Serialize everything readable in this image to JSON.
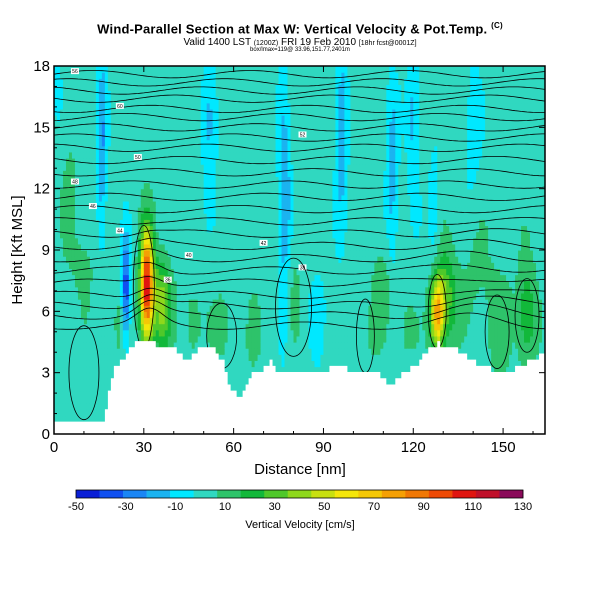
{
  "title": {
    "main": "Wind-Parallel Section at Max W: Vertical Velocity & Pot.Temp.",
    "copyright": "(C)",
    "valid": "Valid 1400 LST",
    "valid_utc": "(1200Z)",
    "valid_date": "FRI 19 Feb 2010",
    "forecast": "[18hr fcst@0001Z]",
    "subline": "box/lmax=119@ 33.96,151.77,2401m"
  },
  "chart_data": {
    "type": "heatmap",
    "title": "Wind-Parallel Section at Max W: Vertical Velocity & Pot.Temp.",
    "xlabel": "Distance [nm]",
    "ylabel": "Height [Kft MSL]",
    "xlim": [
      0,
      164
    ],
    "ylim": [
      0,
      18
    ],
    "xticks": [
      0,
      30,
      60,
      90,
      120,
      150
    ],
    "yticks": [
      0,
      3,
      6,
      9,
      12,
      15,
      18
    ],
    "colorbar": {
      "label": "Vertical Velocity [cm/s]",
      "levels": [
        -50,
        -40,
        -30,
        -20,
        -10,
        0,
        10,
        20,
        30,
        40,
        50,
        60,
        70,
        80,
        90,
        100,
        110,
        120,
        130
      ],
      "tick_labels": [
        "-50",
        "-30",
        "-10",
        "10",
        "30",
        "50",
        "70",
        "90",
        "110",
        "130"
      ],
      "colors": [
        "#0a1fd6",
        "#1050f0",
        "#1a86f5",
        "#1bb3f0",
        "#00e8ff",
        "#30d8c0",
        "#2ec36a",
        "#12b83a",
        "#4fc82a",
        "#8ed81c",
        "#c8e010",
        "#f5e60a",
        "#f5c806",
        "#f5a005",
        "#f07805",
        "#ee4a05",
        "#e01510",
        "#c0102a",
        "#8a0a5a"
      ],
      "contour_labels": [
        "56",
        "60",
        "52",
        "50",
        "48",
        "46",
        "44",
        "42",
        "40",
        "38",
        "36"
      ]
    },
    "background_w": 5,
    "updrafts": [
      {
        "x": 31,
        "z": 7.2,
        "w": 115,
        "sx": 1.5,
        "sz": 1.9
      },
      {
        "x": 36,
        "z": 6.4,
        "w": 40,
        "sx": 2.2,
        "sz": 1.5
      },
      {
        "x": 128,
        "z": 5.9,
        "w": 75,
        "sx": 1.6,
        "sz": 1.2
      },
      {
        "x": 131,
        "z": 6.8,
        "w": 30,
        "sx": 2.5,
        "sz": 1.6
      },
      {
        "x": 158,
        "z": 5.8,
        "w": 25,
        "sx": 2.2,
        "sz": 1.8
      },
      {
        "x": 110,
        "z": 7.2,
        "w": 12,
        "sx": 2.5,
        "sz": 1.6
      },
      {
        "x": 148,
        "z": 5.6,
        "w": 10,
        "sx": 3.5,
        "sz": 2.2
      },
      {
        "x": 46,
        "z": 5.4,
        "w": 10,
        "sx": 2.5,
        "sz": 1.7
      },
      {
        "x": 57,
        "z": 5.3,
        "w": 9,
        "sx": 2.5,
        "sz": 1.5
      },
      {
        "x": 66,
        "z": 5.2,
        "w": 8,
        "sx": 2.5,
        "sz": 1.5
      },
      {
        "x": 102,
        "z": 4.5,
        "w": 7,
        "sx": 3,
        "sz": 1.6
      },
      {
        "x": 117,
        "z": 5.2,
        "w": 8,
        "sx": 2.5,
        "sz": 1.6
      },
      {
        "x": 10,
        "z": 8.5,
        "w": 8,
        "sx": 3,
        "sz": 1.5
      },
      {
        "x": 22,
        "z": 5.3,
        "w": 8,
        "sx": 2,
        "sz": 1.2
      },
      {
        "x": 5,
        "z": 13,
        "w": 7,
        "sx": 2,
        "sz": 3
      },
      {
        "x": 79,
        "z": 7.5,
        "w": 8,
        "sx": 3,
        "sz": 2
      },
      {
        "x": 140,
        "z": 8.0,
        "w": 7,
        "sx": 3,
        "sz": 2
      }
    ],
    "downdrafts": [
      {
        "x": 24,
        "z": 7.0,
        "w": -45,
        "sx": 1.0,
        "sz": 1.8
      },
      {
        "x": 16,
        "z": 14,
        "w": -25,
        "sx": 1.2,
        "sz": 3.5
      },
      {
        "x": 52,
        "z": 15.5,
        "w": -20,
        "sx": 1.8,
        "sz": 2.5
      },
      {
        "x": 77,
        "z": 11,
        "w": -25,
        "sx": 1.5,
        "sz": 4.5
      },
      {
        "x": 96,
        "z": 15,
        "w": -22,
        "sx": 1.5,
        "sz": 3.5
      },
      {
        "x": 113,
        "z": 12.5,
        "w": -20,
        "sx": 1.5,
        "sz": 3.5
      },
      {
        "x": 120,
        "z": 15.5,
        "w": -18,
        "sx": 1.5,
        "sz": 3
      },
      {
        "x": 127,
        "z": 11,
        "w": -12,
        "sx": 1.5,
        "sz": 2
      },
      {
        "x": 88,
        "z": 6,
        "w": -8,
        "sx": 2.5,
        "sz": 2
      },
      {
        "x": 63,
        "z": 6,
        "w": -6,
        "sx": 2,
        "sz": 1.8
      },
      {
        "x": 140,
        "z": 15,
        "w": -10,
        "sx": 2,
        "sz": 3
      },
      {
        "x": 0,
        "z": 17,
        "w": -6,
        "sx": 3,
        "sz": 2
      }
    ],
    "terrain_kft": [
      [
        0,
        0.5
      ],
      [
        8,
        0.5
      ],
      [
        16,
        0.5
      ],
      [
        18,
        2.2
      ],
      [
        20,
        3.2
      ],
      [
        22,
        3.5
      ],
      [
        24,
        4.0
      ],
      [
        27,
        4.4
      ],
      [
        30,
        4.5
      ],
      [
        33,
        4.4
      ],
      [
        36,
        4.2
      ],
      [
        40,
        4.2
      ],
      [
        42,
        3.8
      ],
      [
        44,
        3.5
      ],
      [
        46,
        3.8
      ],
      [
        48,
        4.2
      ],
      [
        52,
        4.3
      ],
      [
        54,
        4.0
      ],
      [
        56,
        3.5
      ],
      [
        58,
        2.5
      ],
      [
        60,
        2.0
      ],
      [
        62,
        1.8
      ],
      [
        64,
        2.3
      ],
      [
        66,
        3.0
      ],
      [
        68,
        3.0
      ],
      [
        70,
        3.3
      ],
      [
        72,
        3.5
      ],
      [
        74,
        3.1
      ],
      [
        76,
        3.0
      ],
      [
        80,
        3.0
      ],
      [
        84,
        3.0
      ],
      [
        88,
        3.0
      ],
      [
        92,
        3.2
      ],
      [
        96,
        3.3
      ],
      [
        100,
        3.0
      ],
      [
        104,
        3.0
      ],
      [
        108,
        3.0
      ],
      [
        110,
        2.6
      ],
      [
        113,
        2.4
      ],
      [
        115,
        2.8
      ],
      [
        117,
        3.0
      ],
      [
        120,
        3.3
      ],
      [
        123,
        3.8
      ],
      [
        125,
        4.2
      ],
      [
        128,
        4.4
      ],
      [
        133,
        4.2
      ],
      [
        136,
        4.0
      ],
      [
        140,
        3.5
      ],
      [
        143,
        3.3
      ],
      [
        148,
        3.1
      ],
      [
        152,
        3.1
      ],
      [
        156,
        3.3
      ],
      [
        160,
        3.7
      ],
      [
        164,
        3.9
      ]
    ],
    "theta_contours": [
      {
        "label": "56",
        "base": 17.6
      },
      {
        "label": "",
        "base": 17.2
      },
      {
        "label": "",
        "base": 16.8
      },
      {
        "label": "",
        "base": 16.4
      },
      {
        "label": "60",
        "base": 15.9
      },
      {
        "label": "",
        "base": 15.5
      },
      {
        "label": "",
        "base": 15.0
      },
      {
        "label": "52",
        "base": 14.5
      },
      {
        "label": "",
        "base": 14.0
      },
      {
        "label": "50",
        "base": 13.4
      },
      {
        "label": "",
        "base": 12.8
      },
      {
        "label": "48",
        "base": 12.2
      },
      {
        "label": "",
        "base": 11.6
      },
      {
        "label": "46",
        "base": 11.0
      },
      {
        "label": "",
        "base": 10.4
      },
      {
        "label": "44",
        "base": 9.8
      },
      {
        "label": "42",
        "base": 9.2
      },
      {
        "label": "40",
        "base": 8.6
      },
      {
        "label": "38",
        "base": 8.0
      },
      {
        "label": "36",
        "base": 7.4
      },
      {
        "label": "",
        "base": 6.8
      },
      {
        "label": "",
        "base": 6.3
      },
      {
        "label": "",
        "base": 5.8
      },
      {
        "label": "",
        "base": 5.3
      }
    ],
    "cell_contours": [
      {
        "x": 30,
        "z": 7.2,
        "rx": 3.5,
        "rz": 3.0
      },
      {
        "x": 128,
        "z": 6.0,
        "rx": 3.0,
        "rz": 1.8
      },
      {
        "x": 158,
        "z": 5.8,
        "rx": 4,
        "rz": 1.8
      },
      {
        "x": 104,
        "z": 4.8,
        "rx": 3,
        "rz": 1.8
      },
      {
        "x": 10,
        "z": 3.0,
        "rx": 5,
        "rz": 2.3
      },
      {
        "x": 56,
        "z": 4.8,
        "rx": 5,
        "rz": 1.6
      },
      {
        "x": 80,
        "z": 6.2,
        "rx": 6,
        "rz": 2.4
      },
      {
        "x": 148,
        "z": 5.0,
        "rx": 4,
        "rz": 1.8
      }
    ]
  }
}
